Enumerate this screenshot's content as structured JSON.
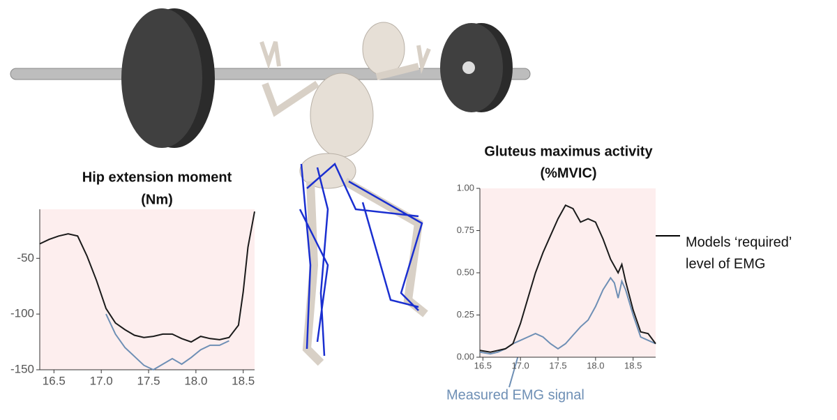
{
  "chart_data": [
    {
      "type": "line",
      "title": "Hip extension moment",
      "subtitle": "(Nm)",
      "xlim": [
        16.35,
        18.62
      ],
      "ylim": [
        -150,
        -6
      ],
      "xticks": [
        {
          "value": 16.5,
          "label": "16.5"
        },
        {
          "value": 17.0,
          "label": "17.0"
        },
        {
          "value": 17.5,
          "label": "17.5"
        },
        {
          "value": 18.0,
          "label": "18.0"
        },
        {
          "value": 18.5,
          "label": "18.5"
        }
      ],
      "yticks": [
        -50,
        -100,
        -150
      ],
      "background": "#fdeeee",
      "series": [
        {
          "color": "#6e8fb5",
          "x": [
            17.05,
            17.15,
            17.25,
            17.35,
            17.45,
            17.55,
            17.65,
            17.75,
            17.85,
            17.95,
            18.05,
            18.15,
            18.25,
            18.35
          ],
          "values": [
            -100,
            -118,
            -130,
            -138,
            -146,
            -150,
            -145,
            -140,
            -145,
            -139,
            -132,
            -128,
            -128,
            -124
          ]
        },
        {
          "color": "#1a1a1a",
          "x": [
            16.35,
            16.45,
            16.55,
            16.65,
            16.75,
            16.85,
            16.95,
            17.05,
            17.15,
            17.25,
            17.35,
            17.45,
            17.55,
            17.65,
            17.75,
            17.85,
            17.95,
            18.05,
            18.15,
            18.25,
            18.35,
            18.45,
            18.5,
            18.55,
            18.62
          ],
          "values": [
            -37,
            -33,
            -30,
            -28,
            -30,
            -48,
            -70,
            -95,
            -108,
            -114,
            -119,
            -121,
            -120,
            -118,
            -118,
            -122,
            -125,
            -120,
            -122,
            -123,
            -121,
            -110,
            -80,
            -40,
            -8
          ]
        }
      ]
    },
    {
      "type": "line",
      "title": "Gluteus maximus activity",
      "subtitle": "(%MVIC)",
      "xlim": [
        16.46,
        18.8
      ],
      "ylim": [
        0,
        1
      ],
      "xticks": [
        {
          "value": 16.5,
          "label": "16.5"
        },
        {
          "value": 17.0,
          "label": "17.0"
        },
        {
          "value": 17.5,
          "label": "17.5"
        },
        {
          "value": 18.0,
          "label": "18.0"
        },
        {
          "value": 18.5,
          "label": "18.5"
        }
      ],
      "yticks": [
        {
          "value": 0,
          "label": "0.00"
        },
        {
          "value": 0.25,
          "label": "0.25"
        },
        {
          "value": 0.5,
          "label": "0.50"
        },
        {
          "value": 0.75,
          "label": "0.75"
        },
        {
          "value": 1,
          "label": "1.00"
        }
      ],
      "background": "#fdeeee",
      "series": [
        {
          "color": "#6e8fb5",
          "x": [
            16.46,
            16.6,
            16.7,
            16.8,
            16.9,
            17.0,
            17.1,
            17.2,
            17.3,
            17.4,
            17.5,
            17.6,
            17.7,
            17.8,
            17.9,
            18.0,
            18.1,
            18.2,
            18.25,
            18.3,
            18.35,
            18.4,
            18.5,
            18.6,
            18.7,
            18.8
          ],
          "values": [
            0.03,
            0.02,
            0.03,
            0.05,
            0.08,
            0.1,
            0.12,
            0.14,
            0.12,
            0.08,
            0.05,
            0.08,
            0.13,
            0.18,
            0.22,
            0.3,
            0.4,
            0.47,
            0.44,
            0.35,
            0.45,
            0.4,
            0.25,
            0.12,
            0.1,
            0.08
          ]
        },
        {
          "color": "#1a1a1a",
          "x": [
            16.46,
            16.6,
            16.7,
            16.8,
            16.9,
            17.0,
            17.1,
            17.2,
            17.3,
            17.4,
            17.5,
            17.6,
            17.7,
            17.8,
            17.9,
            18.0,
            18.1,
            18.2,
            18.3,
            18.35,
            18.4,
            18.5,
            18.6,
            18.7,
            18.8
          ],
          "values": [
            0.04,
            0.03,
            0.04,
            0.05,
            0.08,
            0.2,
            0.35,
            0.5,
            0.62,
            0.72,
            0.82,
            0.9,
            0.88,
            0.8,
            0.82,
            0.8,
            0.7,
            0.58,
            0.5,
            0.55,
            0.45,
            0.28,
            0.15,
            0.14,
            0.08
          ]
        }
      ]
    }
  ],
  "annotations": {
    "required": [
      "Models ‘required’",
      "level of EMG"
    ],
    "measured": "Measured EMG signal"
  }
}
